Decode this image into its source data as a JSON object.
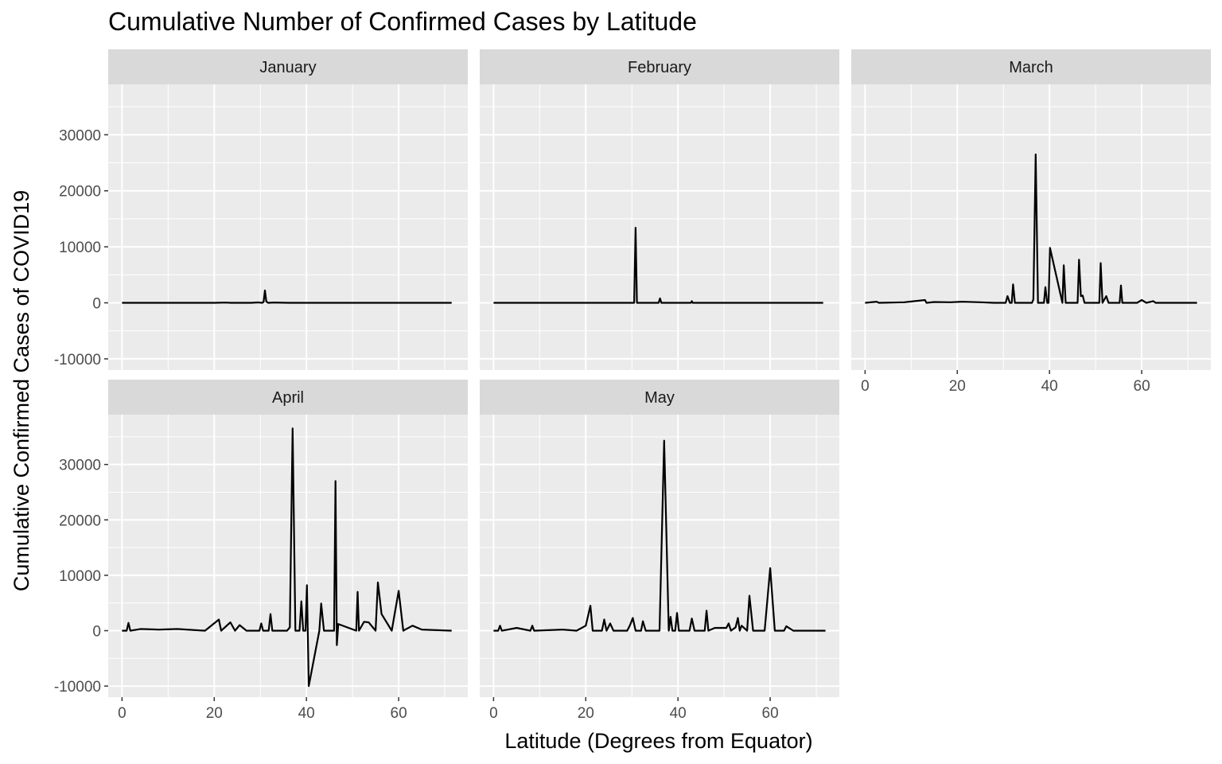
{
  "chart_data": {
    "type": "line",
    "title": "Cumulative Number of Confirmed Cases by Latitude",
    "xlabel": "Latitude (Degrees from Equator)",
    "ylabel": "Cumulative Confirmed Cases of COVID19",
    "xlim": [
      -3,
      75
    ],
    "ylim": [
      -12000,
      39000
    ],
    "x_ticks": [
      0,
      20,
      40,
      60
    ],
    "y_ticks": [
      -10000,
      0,
      10000,
      20000,
      30000
    ],
    "grid": true,
    "legend": "none",
    "facets": [
      {
        "label": "January",
        "x": [
          0,
          10,
          20,
          22.5,
          23.5,
          28,
          29.5,
          30.4,
          30.7,
          31,
          31.3,
          31.7,
          33,
          36,
          40,
          50,
          60,
          71.5
        ],
        "y": [
          0,
          0,
          0,
          50,
          0,
          0,
          80,
          0,
          150,
          2200,
          200,
          0,
          60,
          0,
          0,
          0,
          0,
          0
        ]
      },
      {
        "label": "February",
        "x": [
          0,
          10,
          20,
          28,
          30.5,
          30.8,
          31.1,
          31.5,
          35.8,
          36.1,
          36.4,
          42.8,
          43,
          43.2,
          50,
          60,
          71.5
        ],
        "y": [
          0,
          0,
          0,
          0,
          0,
          13400,
          0,
          0,
          0,
          800,
          0,
          0,
          300,
          0,
          0,
          0,
          0
        ]
      },
      {
        "label": "March",
        "x": [
          0,
          2.5,
          3,
          8.5,
          13,
          13.3,
          15,
          18.5,
          21,
          25,
          28,
          30.5,
          30.9,
          31.4,
          31.8,
          32.1,
          32.5,
          36.2,
          36.5,
          37,
          37.5,
          38.8,
          39.1,
          39.5,
          39.8,
          40.1,
          42.8,
          43.1,
          43.5,
          46.1,
          46.4,
          46.8,
          47.2,
          47.6,
          50.8,
          51.1,
          51.5,
          52.3,
          52.8,
          55.2,
          55.5,
          55.8,
          59,
          60,
          61,
          62.5,
          63,
          72
        ],
        "y": [
          0,
          200,
          0,
          100,
          500,
          0,
          150,
          100,
          200,
          100,
          0,
          0,
          1200,
          0,
          0,
          3300,
          0,
          0,
          600,
          26500,
          0,
          0,
          2800,
          0,
          0,
          9800,
          0,
          6700,
          0,
          0,
          7700,
          1200,
          1300,
          0,
          0,
          7100,
          0,
          1200,
          0,
          0,
          3100,
          0,
          0,
          500,
          0,
          300,
          0,
          0
        ]
      },
      {
        "label": "April",
        "x": [
          0,
          1,
          1.4,
          1.8,
          4,
          8,
          12,
          18,
          21,
          21.5,
          23.5,
          24.5,
          25.5,
          27,
          29.8,
          30.2,
          30.6,
          31.8,
          32.2,
          32.6,
          35.8,
          36.4,
          37,
          37.6,
          38.5,
          38.9,
          39.3,
          39.8,
          40.1,
          40.5,
          42.8,
          43.2,
          43.8,
          46,
          46.3,
          46.6,
          46.9,
          50.8,
          51.1,
          51.4,
          52.5,
          53.5,
          55,
          55.5,
          56.3,
          58.5,
          60,
          61,
          63,
          65,
          71.5
        ],
        "y": [
          0,
          0,
          1400,
          0,
          300,
          200,
          300,
          0,
          2000,
          0,
          1500,
          0,
          1000,
          0,
          0,
          1300,
          0,
          0,
          3000,
          0,
          0,
          600,
          36500,
          0,
          0,
          5300,
          0,
          0,
          8200,
          -10000,
          0,
          4900,
          0,
          0,
          27000,
          -2600,
          1200,
          0,
          7000,
          0,
          1600,
          1500,
          0,
          8700,
          3000,
          0,
          7200,
          0,
          900,
          200,
          0
        ]
      },
      {
        "label": "May",
        "x": [
          0,
          1,
          1.4,
          1.8,
          5,
          8,
          8.4,
          8.8,
          15,
          18,
          20,
          21,
          21.5,
          23.5,
          24,
          24.5,
          25.3,
          26,
          29,
          29.6,
          30.2,
          30.8,
          32,
          32.4,
          33,
          36,
          37,
          38,
          38.4,
          38.8,
          39.4,
          39.8,
          40.2,
          42.5,
          43,
          43.6,
          45.8,
          46.2,
          46.6,
          48,
          50.5,
          51,
          51.5,
          52.5,
          53,
          53.4,
          53.8,
          55,
          55.5,
          56.3,
          58.8,
          60,
          61,
          63,
          63.5,
          65,
          72
        ],
        "y": [
          0,
          0,
          900,
          0,
          500,
          0,
          900,
          0,
          200,
          0,
          900,
          4500,
          0,
          0,
          2000,
          0,
          1300,
          0,
          0,
          1000,
          2300,
          0,
          0,
          1700,
          0,
          0,
          34300,
          0,
          2500,
          0,
          0,
          3200,
          0,
          0,
          2200,
          0,
          0,
          3600,
          0,
          500,
          500,
          1300,
          0,
          600,
          2300,
          0,
          900,
          0,
          6300,
          0,
          0,
          11300,
          0,
          0,
          800,
          0,
          0
        ]
      }
    ]
  }
}
